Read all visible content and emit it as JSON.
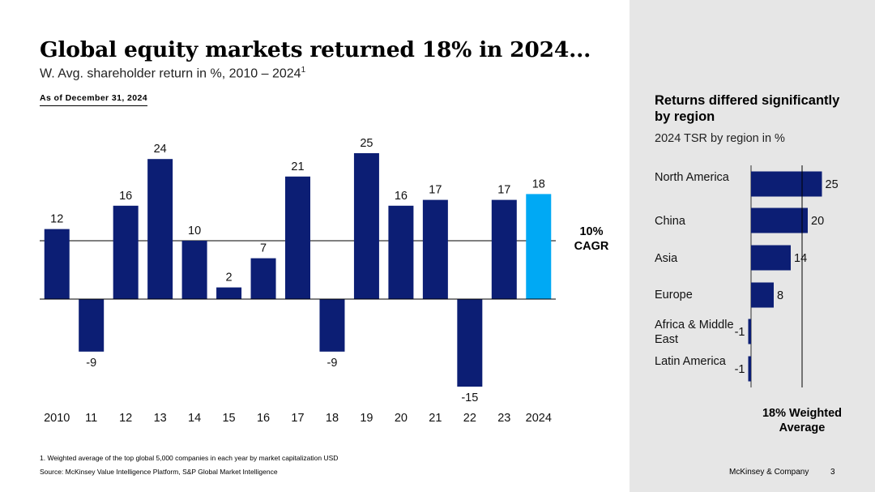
{
  "title": "Global equity markets returned 18% in 2024...",
  "subtitle": "W. Avg. shareholder return in %, 2010 – 2024",
  "subtitle_footnote_mark": "1",
  "as_of": "As of December 31, 2024",
  "chart_data": [
    {
      "type": "bar",
      "title": "Global equity markets returned 18% in 2024...",
      "subtitle": "W. Avg. shareholder return in %, 2010 – 2024",
      "categories": [
        "2010",
        "11",
        "12",
        "13",
        "14",
        "15",
        "16",
        "17",
        "18",
        "19",
        "20",
        "21",
        "22",
        "23",
        "2024"
      ],
      "values": [
        12,
        -9,
        16,
        24,
        10,
        2,
        7,
        21,
        -9,
        25,
        16,
        17,
        -15,
        17,
        18
      ],
      "ylim": [
        -15,
        25
      ],
      "reference_line": {
        "value": 10,
        "label": "10% CAGR"
      },
      "colors": {
        "default": "#0c1e74",
        "highlight": "#00a9f4"
      },
      "highlight_index": 14
    },
    {
      "type": "bar",
      "orientation": "horizontal",
      "title": "Returns differed significantly by region",
      "subtitle": "2024 TSR by region in %",
      "categories": [
        "North America",
        "China",
        "Asia",
        "Europe",
        "Africa & Middle East",
        "Latin America"
      ],
      "values": [
        25,
        20,
        14,
        8,
        -1,
        -1
      ],
      "reference_line": {
        "value": 18,
        "label": "18% Weighted Average"
      },
      "colors": {
        "default": "#0c1e74"
      }
    }
  ],
  "cagr_label": "10% CAGR",
  "region_heading": "Returns differed significantly by region",
  "region_subtitle": "2024 TSR by region in %",
  "weighted_label": "18% Weighted Average",
  "footnote": "1. Weighted average of the top global 5,000 companies in each year by market capitalization USD",
  "source": "Source: McKinsey Value Intelligence Platform, S&P Global Market Intelligence",
  "brand": "McKinsey & Company",
  "page_number": "3"
}
